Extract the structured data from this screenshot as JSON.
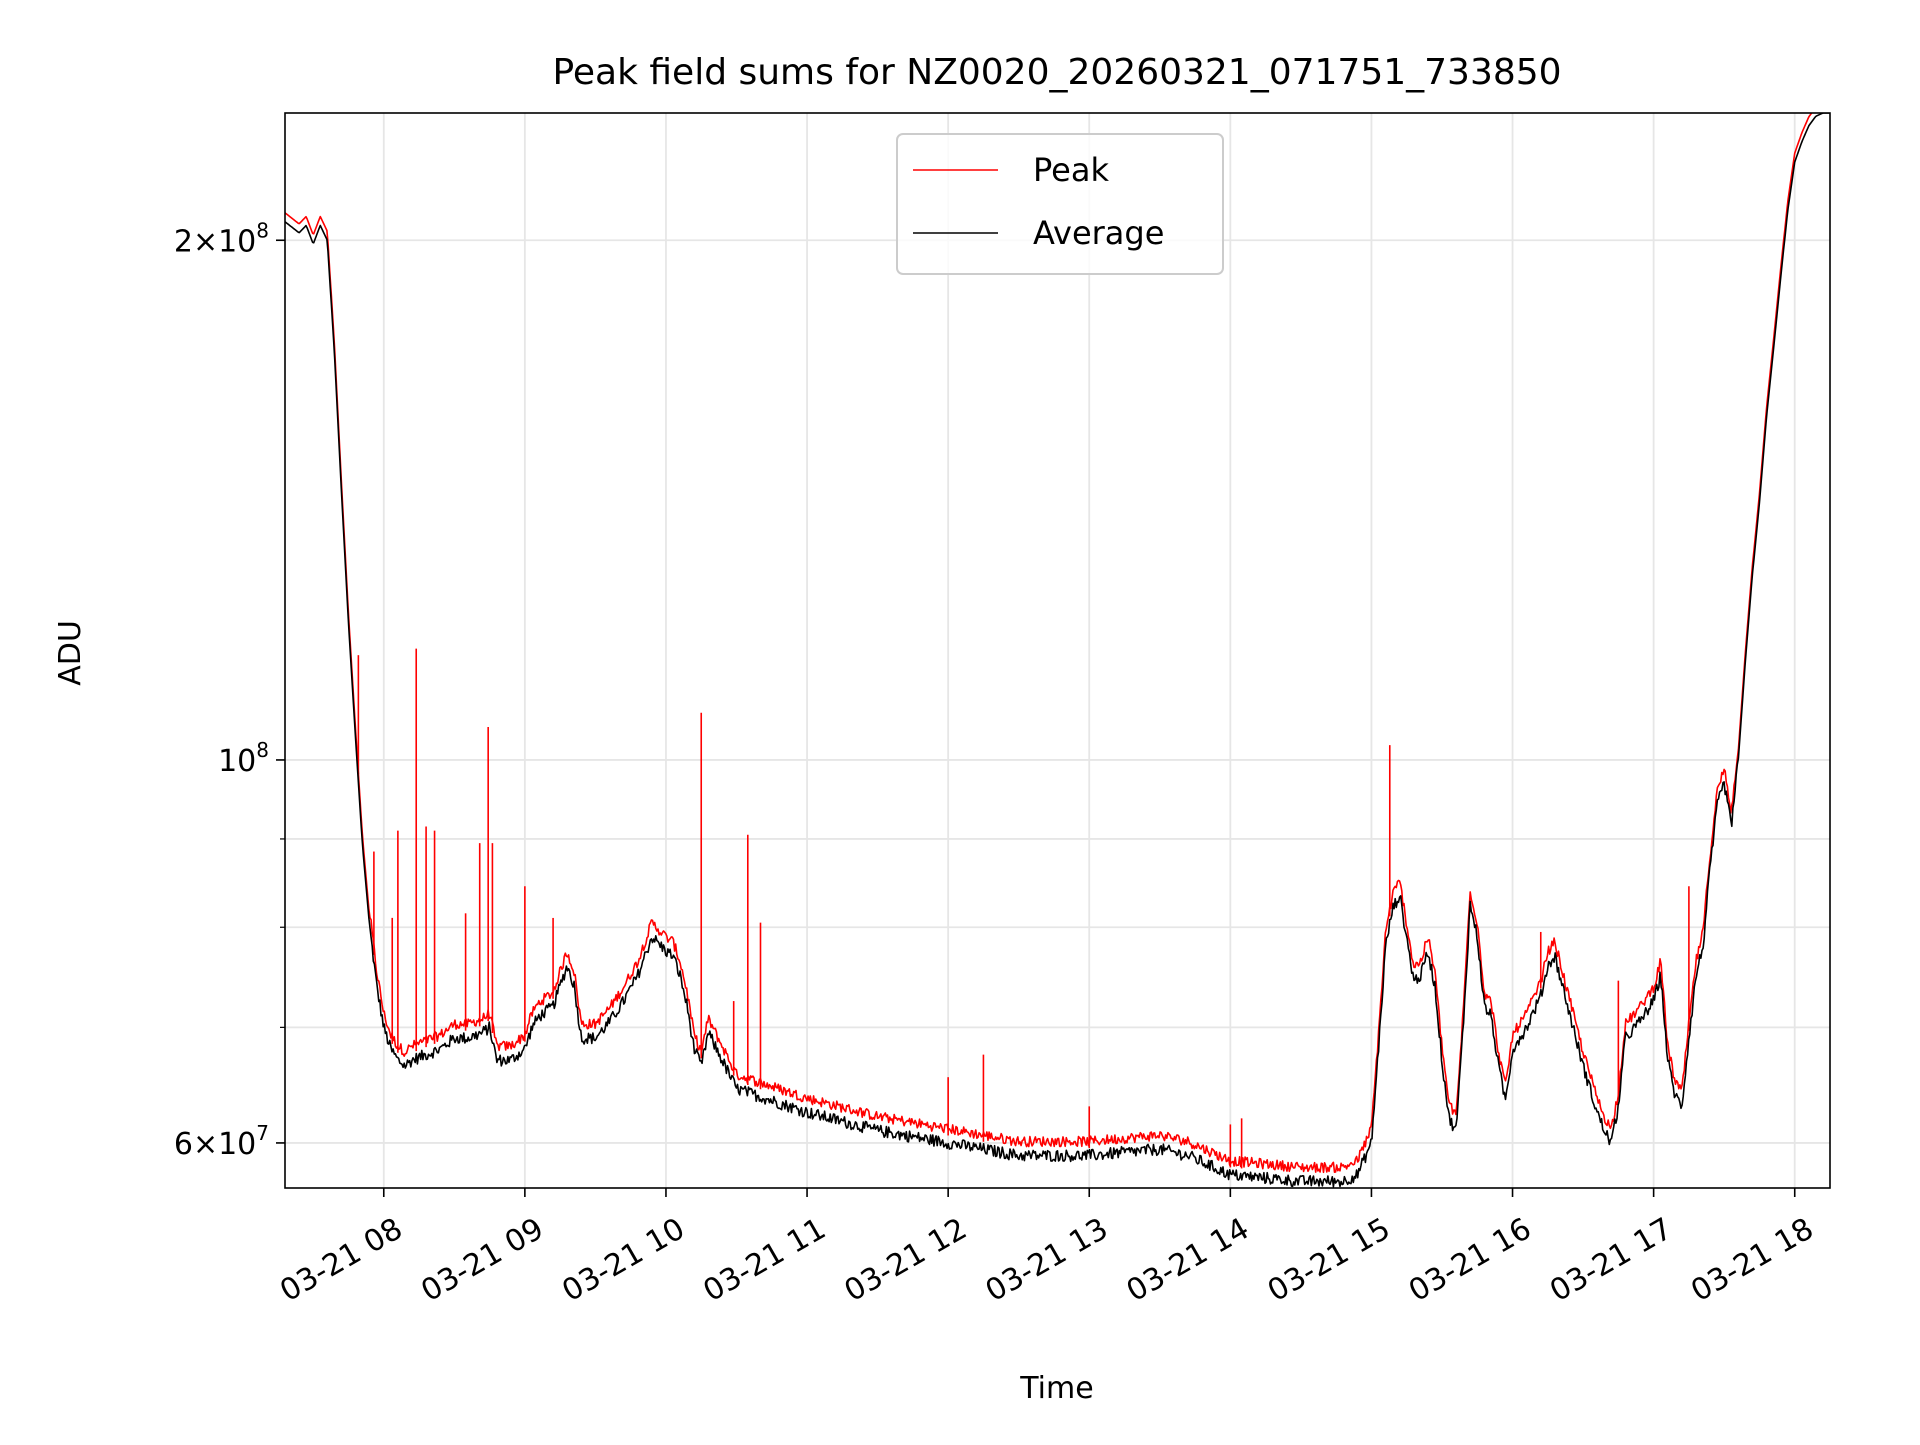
{
  "chart_data": {
    "type": "line",
    "title": "Peak field sums for NZ0020_20260321_071751_733850",
    "xlabel": "Time",
    "ylabel": "ADU",
    "x_unit": "hours (2026-03-21)",
    "xlim": [
      7.3,
      18.25
    ],
    "ylim": [
      56500000,
      237000000
    ],
    "y_scale": "log",
    "grid": true,
    "legend": {
      "position": "top-center"
    },
    "x_ticks": [
      {
        "value": 8,
        "label": "03-21 08"
      },
      {
        "value": 9,
        "label": "03-21 09"
      },
      {
        "value": 10,
        "label": "03-21 10"
      },
      {
        "value": 11,
        "label": "03-21 11"
      },
      {
        "value": 12,
        "label": "03-21 12"
      },
      {
        "value": 13,
        "label": "03-21 13"
      },
      {
        "value": 14,
        "label": "03-21 14"
      },
      {
        "value": 15,
        "label": "03-21 15"
      },
      {
        "value": 16,
        "label": "03-21 16"
      },
      {
        "value": 17,
        "label": "03-21 17"
      },
      {
        "value": 18,
        "label": "03-21 18"
      }
    ],
    "y_ticks": [
      {
        "value": 60000000,
        "base": "6",
        "times": "×",
        "mant": "10",
        "exp": "7"
      },
      {
        "value": 100000000,
        "base": "",
        "times": "",
        "mant": "10",
        "exp": "8"
      },
      {
        "value": 200000000,
        "base": "2",
        "times": "×",
        "mant": "10",
        "exp": "8"
      }
    ],
    "y_minor_ticks": [
      70000000,
      80000000,
      90000000
    ],
    "series": [
      {
        "name": "Peak",
        "color": "#ff0000"
      },
      {
        "name": "Average",
        "color": "#000000"
      }
    ],
    "average_x": [
      7.3,
      7.4,
      7.45,
      7.5,
      7.55,
      7.6,
      7.65,
      7.7,
      7.75,
      7.8,
      7.85,
      7.9,
      7.95,
      8.0,
      8.05,
      8.1,
      8.15,
      8.2,
      8.3,
      8.4,
      8.5,
      8.6,
      8.7,
      8.75,
      8.8,
      8.9,
      9.0,
      9.05,
      9.1,
      9.2,
      9.25,
      9.3,
      9.35,
      9.4,
      9.5,
      9.6,
      9.7,
      9.8,
      9.9,
      10.0,
      10.05,
      10.1,
      10.15,
      10.2,
      10.25,
      10.3,
      10.5,
      11.0,
      11.5,
      12.0,
      12.5,
      13.0,
      13.5,
      13.7,
      14.0,
      14.5,
      14.8,
      14.9,
      15.0,
      15.05,
      15.1,
      15.15,
      15.2,
      15.3,
      15.35,
      15.4,
      15.45,
      15.5,
      15.55,
      15.6,
      15.65,
      15.7,
      15.75,
      15.8,
      15.85,
      15.9,
      15.95,
      16.0,
      16.1,
      16.2,
      16.25,
      16.3,
      16.4,
      16.5,
      16.6,
      16.65,
      16.7,
      16.75,
      16.8,
      16.9,
      17.0,
      17.05,
      17.1,
      17.15,
      17.2,
      17.25,
      17.3,
      17.35,
      17.4,
      17.45,
      17.5,
      17.55,
      17.6,
      17.65,
      17.7,
      17.75,
      17.8,
      17.85,
      17.9,
      17.95,
      18.0,
      18.05,
      18.1,
      18.15,
      18.2,
      18.25
    ],
    "average_y": [
      205000000,
      202000000,
      204000000,
      199000000,
      204000000,
      200000000,
      172000000,
      143000000,
      120000000,
      103000000,
      89000000,
      80000000,
      74000000,
      70000000,
      68000000,
      67000000,
      66500000,
      67000000,
      67500000,
      68000000,
      69000000,
      69000000,
      69500000,
      70000000,
      67000000,
      67000000,
      68000000,
      70000000,
      71000000,
      72000000,
      74000000,
      76000000,
      74000000,
      69000000,
      69000000,
      70500000,
      72500000,
      75000000,
      79000000,
      77500000,
      77000000,
      75000000,
      72000000,
      68000000,
      66500000,
      69500000,
      64500000,
      62500000,
      61000000,
      60000000,
      59000000,
      59000000,
      59500000,
      59000000,
      57500000,
      57000000,
      57000000,
      57500000,
      60000000,
      68000000,
      78000000,
      82000000,
      83500000,
      74500000,
      75000000,
      77500000,
      74000000,
      67000000,
      62000000,
      61000000,
      70000000,
      82500000,
      79000000,
      72000000,
      71000000,
      66500000,
      63500000,
      68000000,
      70000000,
      73000000,
      76000000,
      77000000,
      71500000,
      66500000,
      62500000,
      61000000,
      60000000,
      63000000,
      69000000,
      70500000,
      72500000,
      75000000,
      67000000,
      64000000,
      63000000,
      69000000,
      75000000,
      78000000,
      86500000,
      94000000,
      97000000,
      91500000,
      100000000,
      114000000,
      128000000,
      141000000,
      158000000,
      173000000,
      190000000,
      208000000,
      222000000,
      228000000,
      233000000,
      236000000,
      237000000,
      237000000
    ],
    "peak_spikes": [
      {
        "x": 7.82,
        "y": 115000000
      },
      {
        "x": 7.93,
        "y": 88500000
      },
      {
        "x": 8.06,
        "y": 81000000
      },
      {
        "x": 8.1,
        "y": 91000000
      },
      {
        "x": 8.23,
        "y": 116000000
      },
      {
        "x": 8.3,
        "y": 91500000
      },
      {
        "x": 8.36,
        "y": 91000000
      },
      {
        "x": 8.58,
        "y": 81500000
      },
      {
        "x": 8.68,
        "y": 89500000
      },
      {
        "x": 8.74,
        "y": 104500000
      },
      {
        "x": 8.77,
        "y": 89500000
      },
      {
        "x": 9.0,
        "y": 84500000
      },
      {
        "x": 9.2,
        "y": 81000000
      },
      {
        "x": 10.25,
        "y": 106500000
      },
      {
        "x": 10.48,
        "y": 72500000
      },
      {
        "x": 10.58,
        "y": 90500000
      },
      {
        "x": 10.67,
        "y": 80500000
      },
      {
        "x": 12.0,
        "y": 65500000
      },
      {
        "x": 12.25,
        "y": 67500000
      },
      {
        "x": 13.0,
        "y": 63000000
      },
      {
        "x": 14.0,
        "y": 61500000
      },
      {
        "x": 14.08,
        "y": 62000000
      },
      {
        "x": 15.13,
        "y": 102000000
      },
      {
        "x": 16.2,
        "y": 79500000
      },
      {
        "x": 16.75,
        "y": 74500000
      },
      {
        "x": 17.25,
        "y": 84500000
      }
    ]
  }
}
